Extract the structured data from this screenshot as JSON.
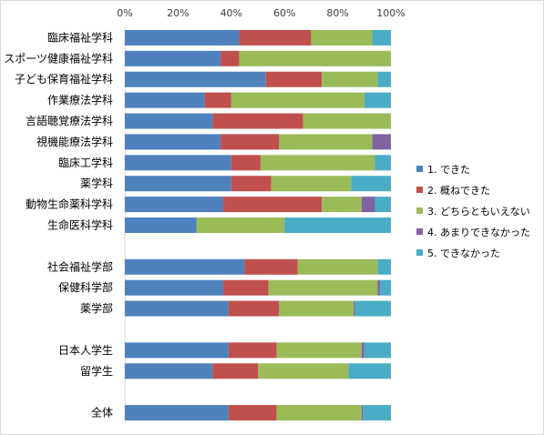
{
  "chart_data": {
    "type": "bar",
    "orientation": "horizontal",
    "stacked": "percent",
    "xlim": [
      0,
      100
    ],
    "x_ticks": [
      "0%",
      "20%",
      "40%",
      "60%",
      "80%",
      "100%"
    ],
    "grid": false,
    "legend_position": "right",
    "categories": [
      "臨床福祉学科",
      "スポーツ健康福祉学科",
      "子ども保育福祉学科",
      "作業療法学科",
      "言語聴覚療法学科",
      "視機能療法学科",
      "臨床工学科",
      "薬学科",
      "動物生命薬科学科",
      "生命医科学科",
      "",
      "社会福祉学部",
      "保健科学部",
      "薬学部",
      "",
      "日本人学生",
      "留学生",
      "",
      "全体"
    ],
    "series": [
      {
        "name": "1. できた",
        "color": "#4f81bd",
        "values": [
          43,
          36,
          53,
          30,
          33,
          36,
          40,
          40,
          37,
          27,
          null,
          45,
          37,
          39,
          null,
          39,
          33,
          null,
          39
        ]
      },
      {
        "name": "2. 概ねできた",
        "color": "#c0504d",
        "values": [
          27,
          7,
          21,
          10,
          34,
          22,
          11,
          15,
          37,
          0,
          null,
          20,
          17,
          19,
          null,
          18,
          17,
          null,
          18
        ]
      },
      {
        "name": "3. どちらともいえない",
        "color": "#9bbb59",
        "values": [
          23,
          57,
          21,
          50,
          33,
          35,
          43,
          30,
          15,
          33,
          null,
          30,
          41,
          28,
          null,
          32,
          34,
          null,
          32
        ]
      },
      {
        "name": "4. あまりできなかった",
        "color": "#8064a2",
        "values": [
          0,
          0,
          0,
          0,
          0,
          7,
          0,
          0,
          5,
          0,
          null,
          0,
          1,
          0.5,
          null,
          1,
          0,
          null,
          0.5
        ]
      },
      {
        "name": "5. できなかった",
        "color": "#4bacc6",
        "values": [
          7,
          0,
          5,
          10,
          0,
          0,
          6,
          15,
          6,
          40,
          null,
          5,
          4,
          13.5,
          null,
          10,
          16,
          null,
          10.5
        ]
      }
    ]
  }
}
